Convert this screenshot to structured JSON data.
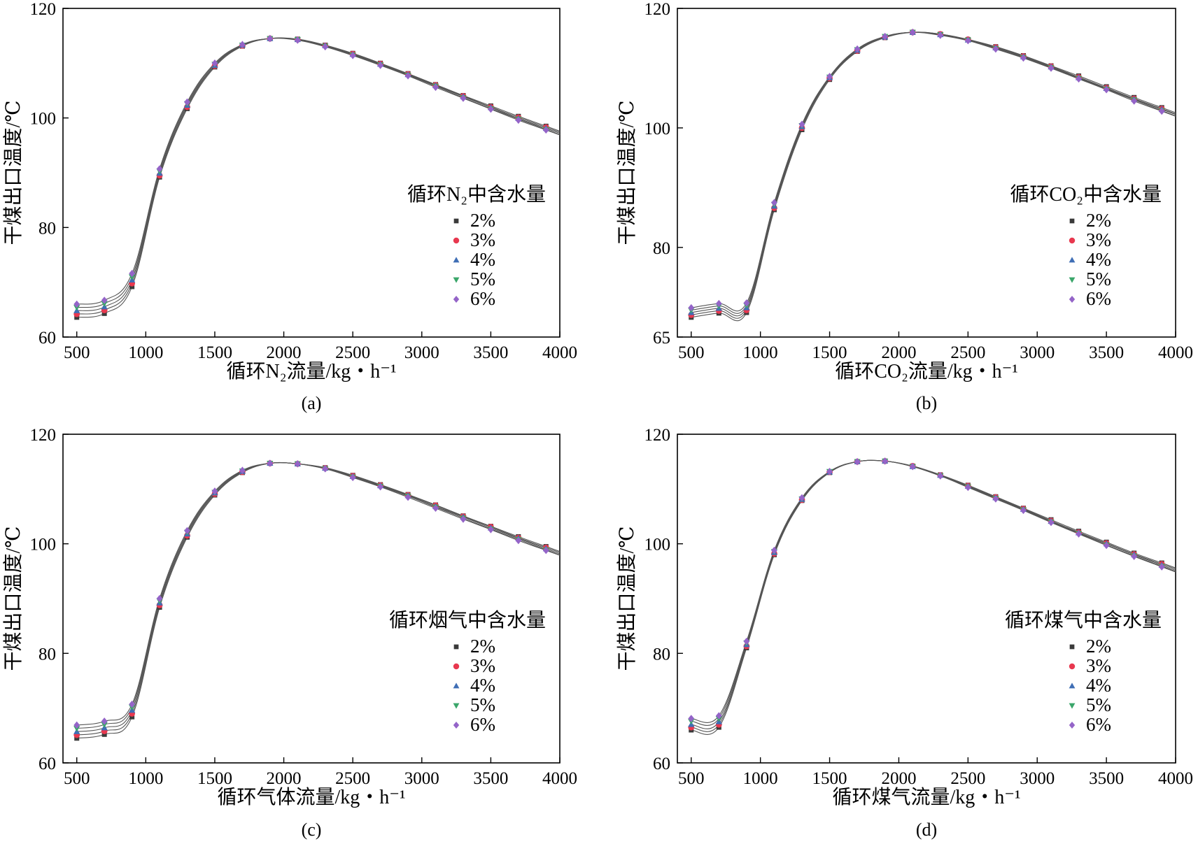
{
  "chart_data": [
    {
      "id": "a",
      "type": "line",
      "caption": "(a)",
      "xlabel": "循环N₂流量/kg・h⁻¹",
      "ylabel": "干煤出口温度/℃",
      "legend_title": "循环N₂中含水量",
      "legend_position": "center-right",
      "xlim": [
        400,
        4000
      ],
      "ylim": [
        60,
        120
      ],
      "xticks": [
        500,
        1000,
        1500,
        2000,
        2500,
        3000,
        3500,
        4000
      ],
      "yticks": [
        60,
        80,
        100,
        120
      ],
      "xtick_labels": [
        "500",
        "1000",
        "1500",
        "2000",
        "2500",
        "3000",
        "3500",
        "4000"
      ],
      "ytick_labels": [
        "60",
        "80",
        "100",
        "120"
      ],
      "x": [
        500,
        700,
        900,
        1100,
        1300,
        1500,
        1700,
        1900,
        2100,
        2300,
        2500,
        2700,
        2900,
        3100,
        3300,
        3500,
        3700,
        3900
      ],
      "series": [
        {
          "name": "2%",
          "values": [
            63.6,
            64.3,
            69.2,
            89.2,
            101.7,
            109.3,
            113.1,
            114.5,
            114.4,
            113.3,
            111.8,
            110.0,
            108.1,
            106.1,
            104.1,
            102.2,
            100.3,
            98.5
          ]
        },
        {
          "name": "3%",
          "values": [
            64.2,
            64.9,
            69.8,
            89.5,
            102.0,
            109.5,
            113.2,
            114.5,
            114.3,
            113.2,
            111.7,
            109.9,
            108.0,
            106.0,
            104.0,
            102.0,
            100.1,
            98.3
          ]
        },
        {
          "name": "4%",
          "values": [
            64.8,
            65.5,
            70.4,
            89.9,
            102.3,
            109.6,
            113.3,
            114.5,
            114.3,
            113.2,
            111.6,
            109.8,
            107.9,
            105.9,
            103.9,
            101.9,
            99.9,
            98.1
          ]
        },
        {
          "name": "5%",
          "values": [
            65.4,
            66.1,
            71.0,
            90.3,
            102.6,
            109.8,
            113.3,
            114.5,
            114.3,
            113.1,
            111.5,
            109.7,
            107.8,
            105.8,
            103.7,
            101.7,
            99.8,
            97.9
          ]
        },
        {
          "name": "6%",
          "values": [
            66.0,
            66.7,
            71.6,
            90.7,
            102.9,
            110.0,
            113.4,
            114.5,
            114.2,
            113.0,
            111.4,
            109.6,
            107.7,
            105.6,
            103.6,
            101.6,
            99.6,
            97.8
          ]
        }
      ]
    },
    {
      "id": "b",
      "type": "line",
      "caption": "(b)",
      "xlabel": "循环CO₂流量/kg・h⁻¹",
      "ylabel": "干煤出口温度/℃",
      "legend_title": "循环CO₂中含水量",
      "legend_position": "center-right",
      "xlim": [
        400,
        4000
      ],
      "ylim": [
        65,
        120
      ],
      "xticks": [
        500,
        1000,
        1500,
        2000,
        2500,
        3000,
        3500,
        4000
      ],
      "yticks": [
        65,
        80,
        100,
        120
      ],
      "xtick_labels": [
        "500",
        "1000",
        "1500",
        "2000",
        "2500",
        "3000",
        "3500",
        "4000"
      ],
      "ytick_labels": [
        "65",
        "80",
        "100",
        "120"
      ],
      "x": [
        500,
        700,
        900,
        1100,
        1300,
        1500,
        1700,
        1900,
        2100,
        2300,
        2500,
        2700,
        2900,
        3100,
        3300,
        3500,
        3700,
        3900
      ],
      "series": [
        {
          "name": "2%",
          "values": [
            68.3,
            69.0,
            69.1,
            86.3,
            99.7,
            108.1,
            112.8,
            115.1,
            116.0,
            115.7,
            114.8,
            113.6,
            112.1,
            110.4,
            108.7,
            106.9,
            105.1,
            103.4
          ]
        },
        {
          "name": "3%",
          "values": [
            68.7,
            69.4,
            69.5,
            86.6,
            100.0,
            108.3,
            112.9,
            115.2,
            116.0,
            115.7,
            114.8,
            113.5,
            112.0,
            110.3,
            108.5,
            106.7,
            104.9,
            103.2
          ]
        },
        {
          "name": "4%",
          "values": [
            69.1,
            69.8,
            69.9,
            86.9,
            100.2,
            108.4,
            113.0,
            115.2,
            116.0,
            115.6,
            114.7,
            113.4,
            111.9,
            110.2,
            108.4,
            106.6,
            104.8,
            103.1
          ]
        },
        {
          "name": "5%",
          "values": [
            69.5,
            70.2,
            70.3,
            87.2,
            100.4,
            108.5,
            113.1,
            115.3,
            116.0,
            115.6,
            114.7,
            113.3,
            111.8,
            110.1,
            108.3,
            106.5,
            104.7,
            102.9
          ]
        },
        {
          "name": "6%",
          "values": [
            69.9,
            70.6,
            70.7,
            87.5,
            100.6,
            108.6,
            113.2,
            115.3,
            116.0,
            115.5,
            114.6,
            113.2,
            111.7,
            110.0,
            108.2,
            106.4,
            104.5,
            102.8
          ]
        }
      ]
    },
    {
      "id": "c",
      "type": "line",
      "caption": "(c)",
      "xlabel": "循环气体流量/kg・h⁻¹",
      "ylabel": "干煤出口温度/℃",
      "legend_title": "循环烟气中含水量",
      "legend_position": "center-right",
      "xlim": [
        400,
        4000
      ],
      "ylim": [
        60,
        120
      ],
      "xticks": [
        500,
        1000,
        1500,
        2000,
        2500,
        3000,
        3500,
        4000
      ],
      "yticks": [
        60,
        80,
        100,
        120
      ],
      "xtick_labels": [
        "500",
        "1000",
        "1500",
        "2000",
        "2500",
        "3000",
        "3500",
        "4000"
      ],
      "ytick_labels": [
        "60",
        "80",
        "100",
        "120"
      ],
      "x": [
        500,
        700,
        900,
        1100,
        1300,
        1500,
        1700,
        1900,
        2100,
        2300,
        2500,
        2700,
        2900,
        3100,
        3300,
        3500,
        3700,
        3900
      ],
      "series": [
        {
          "name": "2%",
          "values": [
            64.5,
            65.2,
            68.4,
            88.4,
            101.2,
            108.9,
            113.0,
            114.7,
            114.6,
            113.9,
            112.5,
            110.8,
            109.0,
            107.1,
            105.1,
            103.2,
            101.3,
            99.5
          ]
        },
        {
          "name": "3%",
          "values": [
            65.1,
            65.8,
            69.0,
            88.8,
            101.5,
            109.1,
            113.1,
            114.7,
            114.6,
            113.8,
            112.4,
            110.7,
            108.9,
            107.0,
            105.0,
            103.1,
            101.1,
            99.3
          ]
        },
        {
          "name": "4%",
          "values": [
            65.7,
            66.4,
            69.6,
            89.2,
            101.8,
            109.3,
            113.2,
            114.7,
            114.6,
            113.8,
            112.3,
            110.6,
            108.8,
            106.8,
            104.9,
            102.9,
            101.0,
            99.1
          ]
        },
        {
          "name": "5%",
          "values": [
            66.3,
            67.0,
            70.2,
            89.6,
            102.1,
            109.4,
            113.3,
            114.7,
            114.6,
            113.7,
            112.2,
            110.5,
            108.7,
            106.7,
            104.7,
            102.7,
            100.8,
            98.9
          ]
        },
        {
          "name": "6%",
          "values": [
            66.9,
            67.6,
            70.7,
            90.0,
            102.4,
            109.6,
            113.4,
            114.7,
            114.6,
            113.7,
            112.1,
            110.4,
            108.5,
            106.5,
            104.5,
            102.6,
            100.6,
            98.8
          ]
        }
      ]
    },
    {
      "id": "d",
      "type": "line",
      "caption": "(d)",
      "xlabel": "循环煤气流量/kg・h⁻¹",
      "ylabel": "干煤出口温度/℃",
      "legend_title": "循环煤气中含水量",
      "legend_position": "center-right",
      "xlim": [
        400,
        4000
      ],
      "ylim": [
        60,
        120
      ],
      "xticks": [
        500,
        1000,
        1500,
        2000,
        2500,
        3000,
        3500,
        4000
      ],
      "yticks": [
        60,
        80,
        100,
        120
      ],
      "xtick_labels": [
        "500",
        "1000",
        "1500",
        "2000",
        "2500",
        "3000",
        "3500",
        "4000"
      ],
      "ytick_labels": [
        "60",
        "80",
        "100",
        "120"
      ],
      "x": [
        500,
        700,
        900,
        1100,
        1300,
        1500,
        1700,
        1900,
        2100,
        2300,
        2500,
        2700,
        2900,
        3100,
        3300,
        3500,
        3700,
        3900
      ],
      "series": [
        {
          "name": "2%",
          "values": [
            66.0,
            66.5,
            81.0,
            98.0,
            107.9,
            113.0,
            115.0,
            115.1,
            114.2,
            112.6,
            110.7,
            108.6,
            106.5,
            104.4,
            102.3,
            100.3,
            98.3,
            96.5
          ]
        },
        {
          "name": "3%",
          "values": [
            66.5,
            67.0,
            81.3,
            98.2,
            108.0,
            113.1,
            115.0,
            115.1,
            114.2,
            112.5,
            110.6,
            108.5,
            106.4,
            104.2,
            102.1,
            100.1,
            98.1,
            96.3
          ]
        },
        {
          "name": "4%",
          "values": [
            67.0,
            67.5,
            81.6,
            98.4,
            108.1,
            113.1,
            115.0,
            115.1,
            114.1,
            112.5,
            110.5,
            108.4,
            106.3,
            104.1,
            102.0,
            100.0,
            98.0,
            96.1
          ]
        },
        {
          "name": "5%",
          "values": [
            67.6,
            68.1,
            81.9,
            98.6,
            108.2,
            113.2,
            115.0,
            115.1,
            114.1,
            112.4,
            110.4,
            108.3,
            106.2,
            104.0,
            101.9,
            99.8,
            97.8,
            95.9
          ]
        },
        {
          "name": "6%",
          "values": [
            68.1,
            68.6,
            82.2,
            98.8,
            108.4,
            113.2,
            115.0,
            115.1,
            114.1,
            112.4,
            110.3,
            108.2,
            106.1,
            103.9,
            101.8,
            99.7,
            97.7,
            95.8
          ]
        }
      ]
    }
  ],
  "series_styles": [
    {
      "name": "2%",
      "marker": "square",
      "color": "#3a3a3a"
    },
    {
      "name": "3%",
      "marker": "circle",
      "color": "#e8384f"
    },
    {
      "name": "4%",
      "marker": "triangle-up",
      "color": "#3f6eb5"
    },
    {
      "name": "5%",
      "marker": "triangle-down",
      "color": "#3aa66a"
    },
    {
      "name": "6%",
      "marker": "diamond",
      "color": "#9464c8"
    }
  ],
  "line_color": "#555555"
}
